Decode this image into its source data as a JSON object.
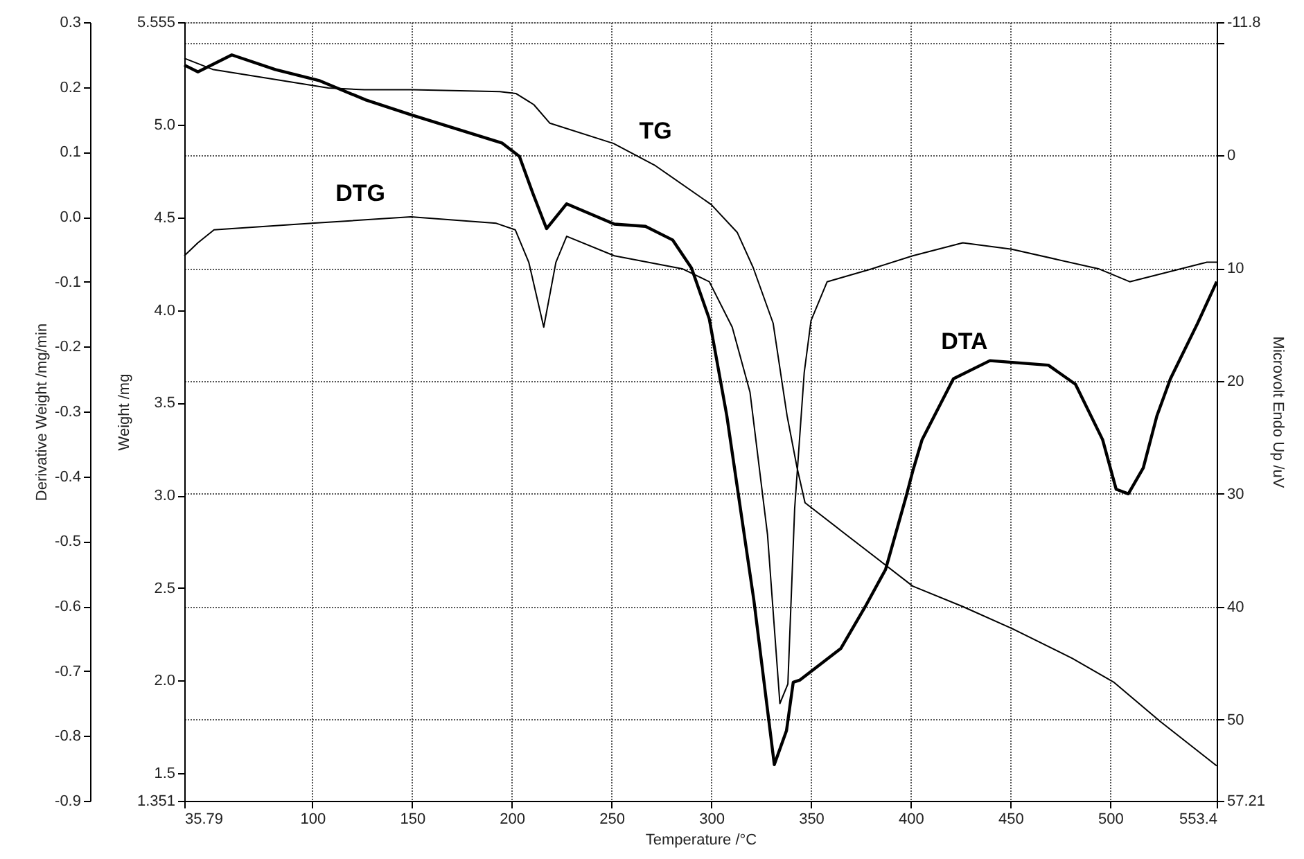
{
  "chart_data": {
    "type": "line",
    "xlabel": "Temperature /°C",
    "ylabel": "Weight /mg",
    "y2label": "Microvolt Endo Up /uV",
    "y3label": "Derivative Weight /mg/min",
    "xlim": [
      35.79,
      553.4
    ],
    "xticks": [
      35.79,
      100,
      150,
      200,
      250,
      300,
      350,
      400,
      450,
      500,
      553.4
    ],
    "ylim": [
      1.351,
      5.555
    ],
    "yticks": [
      5.555,
      {
        "value": 5,
        "label": "5.0"
      },
      4.5,
      {
        "value": 4,
        "label": "4.0"
      },
      3.5,
      {
        "value": 3,
        "label": "3.0"
      },
      2.5,
      {
        "value": 2,
        "label": "2.0"
      },
      1.5,
      1.351
    ],
    "y2lim": [
      57.21,
      -11.8
    ],
    "y2ticks": [
      -11.8,
      {
        "value": -10,
        "label": null
      },
      0,
      10,
      20,
      30,
      40,
      50,
      57.21
    ],
    "y3lim": [
      -0.9,
      0.3
    ],
    "y3ticks": [
      0.3,
      0.2,
      0.1,
      {
        "value": 0,
        "label": "0.0"
      },
      -0.1,
      -0.2,
      -0.3,
      -0.4,
      -0.5,
      -0.6,
      -0.7,
      -0.8,
      -0.9
    ],
    "grid": true,
    "series": [
      {
        "name": "TG",
        "color": "#000000",
        "axis": "y",
        "x": [
          35.79,
          50,
          108,
          126,
          150,
          194,
          202,
          211,
          219,
          251,
          272,
          300,
          313,
          321,
          331,
          338,
          343,
          347,
          365,
          401,
          426,
          451,
          481,
          502,
          525,
          553.4
        ],
        "values": [
          5.36,
          5.3,
          5.2,
          5.19,
          5.19,
          5.18,
          5.17,
          5.11,
          5.01,
          4.9,
          4.78,
          4.57,
          4.42,
          4.23,
          3.93,
          3.43,
          3.15,
          2.96,
          2.81,
          2.51,
          2.4,
          2.28,
          2.12,
          1.99,
          1.78,
          1.54
        ]
      },
      {
        "name": "DTG",
        "color": "#000000",
        "axis": "y3",
        "x": [
          35.79,
          42.6,
          50.7,
          99.7,
          149.4,
          192.2,
          201.7,
          208.5,
          216,
          222.1,
          227.5,
          251.4,
          285.4,
          299,
          310.5,
          319.4,
          328.2,
          334.4,
          338.4,
          341.8,
          346.6,
          350,
          358.1,
          380.6,
          401,
          426.1,
          450.6,
          494.1,
          509.8,
          548.5,
          553.4
        ],
        "values": [
          -0.06,
          -0.04,
          -0.02,
          -0.01,
          0,
          -0.01,
          -0.02,
          -0.07,
          -0.17,
          -0.07,
          -0.03,
          -0.06,
          -0.08,
          -0.1,
          -0.17,
          -0.27,
          -0.49,
          -0.75,
          -0.72,
          -0.45,
          -0.24,
          -0.16,
          -0.1,
          -0.08,
          -0.06,
          -0.04,
          -0.05,
          -0.08,
          -0.1,
          -0.07,
          -0.07
        ]
      },
      {
        "name": "DTA",
        "color": "#000000",
        "axis": "y2",
        "x": [
          35.79,
          42.6,
          59.6,
          81.4,
          103.8,
          126.9,
          149.4,
          195,
          203.8,
          210.6,
          217.4,
          227.5,
          251.4,
          267,
          280.6,
          290.1,
          299,
          307.8,
          321.4,
          331.6,
          337.7,
          341.1,
          344.5,
          365,
          377.2,
          387.4,
          397.6,
          401,
          405.7,
          421.4,
          439.7,
          469,
          482.6,
          496.2,
          503,
          509.1,
          516.6,
          523.4,
          530.2,
          543.8,
          553.4
        ],
        "values": [
          -8,
          -7.4,
          -8.9,
          -7.6,
          -6.6,
          -4.9,
          -3.6,
          -1.1,
          0.1,
          3.4,
          6.5,
          4.3,
          6.1,
          6.3,
          7.5,
          10,
          14.5,
          23.1,
          39.5,
          54,
          51,
          46.7,
          46.5,
          43.7,
          40,
          36.7,
          30.3,
          28,
          25.2,
          19.8,
          18.2,
          18.6,
          20.3,
          25.2,
          29.6,
          30,
          27.7,
          23.1,
          19.8,
          14.9,
          11.2
        ]
      }
    ]
  }
}
